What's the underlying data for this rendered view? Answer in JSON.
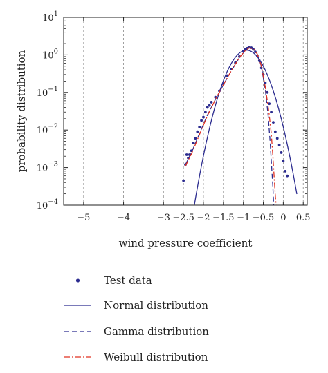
{
  "chart_data": {
    "type": "line",
    "xlabel": "wind pressure coefficient",
    "ylabel": "probability distribution",
    "xlim": [
      -5.5,
      0.6
    ],
    "ylim": [
      0.0001,
      10
    ],
    "yscale": "log",
    "grid": "vertical dashed",
    "legend_placement": "below",
    "x_ticks": [
      -5,
      -4.5,
      -4,
      -3.5,
      -3,
      -2.5,
      -2,
      -1.5,
      -1,
      -0.5,
      0,
      0.5
    ],
    "x_tick_labels": [
      "−5",
      "−4",
      "−3",
      "−2.5",
      "−2",
      "−1.5",
      "−1",
      "−0.5",
      "0",
      "0.5"
    ],
    "x_tick_values": [
      -5,
      -4,
      -3,
      -2.5,
      -2,
      -1.5,
      -1,
      -0.5,
      0,
      0.5
    ],
    "y_ticks": [
      0.0001,
      0.001,
      0.01,
      0.1,
      1,
      10
    ],
    "y_tick_labels": [
      {
        "base": "10",
        "exp": "−4"
      },
      {
        "base": "10",
        "exp": "−3"
      },
      {
        "base": "10",
        "exp": "−2"
      },
      {
        "base": "10",
        "exp": "−1"
      },
      {
        "base": "10",
        "exp": "0"
      },
      {
        "base": "10",
        "exp": "1"
      }
    ],
    "series": [
      {
        "name": "Test data",
        "style": "markers",
        "color": "#2b2b8f",
        "x": [
          -2.5,
          -2.45,
          -2.42,
          -2.38,
          -2.35,
          -2.3,
          -2.25,
          -2.2,
          -2.15,
          -2.1,
          -2.05,
          -2.0,
          -1.95,
          -1.9,
          -1.85,
          -1.8,
          -1.7,
          -1.6,
          -1.5,
          -1.4,
          -1.3,
          -1.2,
          -1.1,
          -1.0,
          -0.95,
          -0.9,
          -0.85,
          -0.8,
          -0.75,
          -0.7,
          -0.65,
          -0.6,
          -0.55,
          -0.5,
          -0.45,
          -0.4,
          -0.35,
          -0.3,
          -0.25,
          -0.2,
          -0.15,
          -0.1,
          -0.05,
          0.0,
          0.05,
          0.1
        ],
        "y": [
          0.00045,
          0.0012,
          0.0022,
          0.0018,
          0.0022,
          0.0028,
          0.0045,
          0.006,
          0.009,
          0.012,
          0.018,
          0.022,
          0.03,
          0.04,
          0.045,
          0.055,
          0.075,
          0.11,
          0.17,
          0.28,
          0.42,
          0.62,
          0.9,
          1.25,
          1.4,
          1.5,
          1.6,
          1.55,
          1.4,
          1.2,
          0.95,
          0.7,
          0.45,
          0.3,
          0.18,
          0.1,
          0.05,
          0.03,
          0.016,
          0.009,
          0.006,
          0.004,
          0.0025,
          0.0015,
          0.0008,
          0.0006
        ]
      },
      {
        "name": "Normal distribution",
        "style": "solid",
        "color": "#2b2b8f",
        "params": {
          "mean": -0.92,
          "sd": 0.3
        }
      },
      {
        "name": "Gamma distribution",
        "style": "dashed",
        "color": "#2b2b8f",
        "x": [
          -2.45,
          -2.3,
          -2.1,
          -1.9,
          -1.7,
          -1.5,
          -1.3,
          -1.1,
          -0.95,
          -0.85,
          -0.75,
          -0.65,
          -0.55,
          -0.45,
          -0.38,
          -0.33,
          -0.29,
          -0.26,
          -0.24
        ],
        "y": [
          0.0012,
          0.0025,
          0.008,
          0.025,
          0.065,
          0.16,
          0.38,
          0.85,
          1.3,
          1.55,
          1.45,
          1.05,
          0.5,
          0.12,
          0.025,
          0.005,
          0.001,
          0.0003,
          0.0001
        ]
      },
      {
        "name": "Weibull distribution",
        "style": "dash-dot",
        "color": "#e03020",
        "x": [
          -2.45,
          -2.3,
          -2.1,
          -1.9,
          -1.7,
          -1.5,
          -1.3,
          -1.1,
          -0.95,
          -0.85,
          -0.75,
          -0.65,
          -0.55,
          -0.45,
          -0.36,
          -0.3,
          -0.26,
          -0.23,
          -0.2,
          -0.18
        ],
        "y": [
          0.0011,
          0.0023,
          0.0075,
          0.024,
          0.065,
          0.16,
          0.38,
          0.85,
          1.3,
          1.55,
          1.45,
          1.05,
          0.52,
          0.14,
          0.03,
          0.008,
          0.002,
          0.0006,
          0.00018,
          0.0001
        ]
      }
    ]
  }
}
